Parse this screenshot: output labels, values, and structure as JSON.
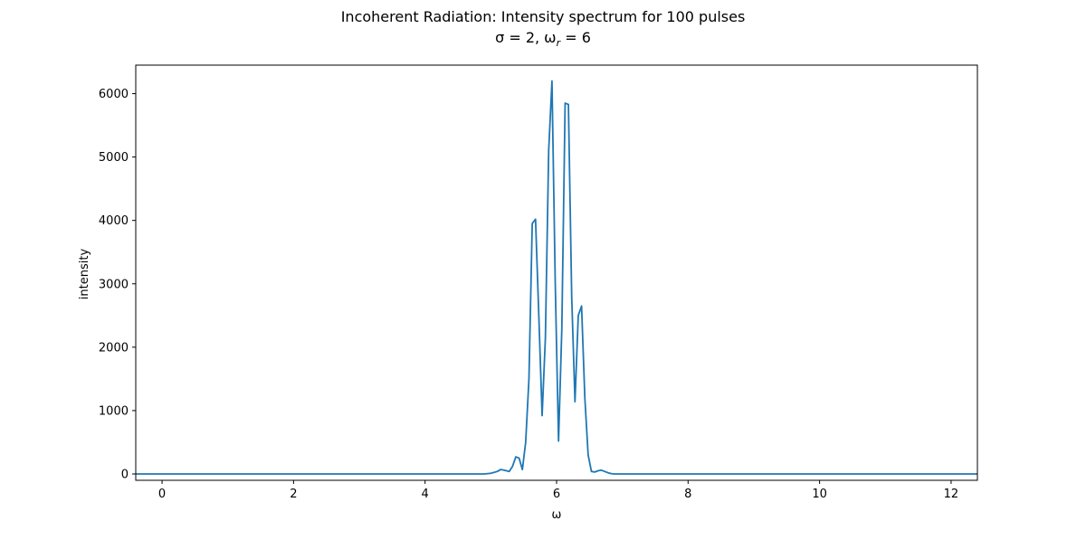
{
  "chart_data": {
    "type": "line",
    "title": "Incoherent Radiation: Intensity spectrum for 100 pulses",
    "subtitle_parts": [
      "σ = 2, ω",
      "r",
      " = 6"
    ],
    "xlabel": "ω",
    "ylabel": "intensity",
    "xlim": [
      -0.4,
      12.4
    ],
    "ylim": [
      -100,
      6450
    ],
    "xticks": [
      0,
      2,
      4,
      6,
      8,
      10,
      12
    ],
    "xtick_labels": [
      "0",
      "2",
      "4",
      "6",
      "8",
      "10",
      "12"
    ],
    "yticks": [
      0,
      1000,
      2000,
      3000,
      4000,
      5000,
      6000
    ],
    "ytick_labels": [
      "0",
      "1000",
      "2000",
      "3000",
      "4000",
      "5000",
      "6000"
    ],
    "grid": false,
    "series": [
      {
        "color": "#1f77b4",
        "x": [
          -0.4,
          4.9,
          5.0,
          5.1,
          5.15,
          5.2,
          5.28,
          5.33,
          5.38,
          5.43,
          5.48,
          5.53,
          5.58,
          5.63,
          5.68,
          5.73,
          5.78,
          5.83,
          5.88,
          5.93,
          5.98,
          6.03,
          6.08,
          6.13,
          6.18,
          6.23,
          6.28,
          6.33,
          6.38,
          6.43,
          6.48,
          6.53,
          6.58,
          6.63,
          6.68,
          6.73,
          6.78,
          6.83,
          6.88,
          6.95,
          7.2,
          12.4
        ],
        "y": [
          0,
          0,
          10,
          40,
          70,
          60,
          40,
          120,
          270,
          250,
          70,
          500,
          1500,
          3950,
          4020,
          2500,
          920,
          2150,
          5100,
          6200,
          3000,
          520,
          2300,
          5850,
          5830,
          2800,
          1140,
          2500,
          2650,
          1200,
          300,
          40,
          30,
          50,
          60,
          40,
          20,
          5,
          0,
          0,
          0,
          0
        ]
      }
    ]
  }
}
